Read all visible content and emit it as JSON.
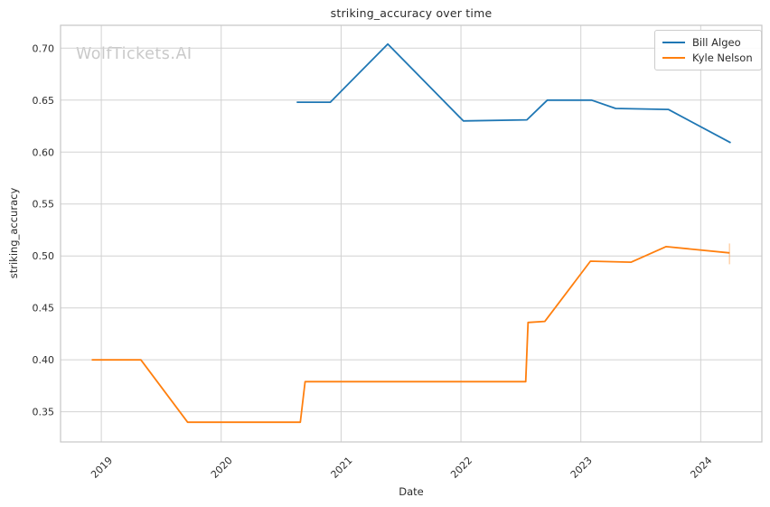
{
  "figure": {
    "watermark": "WolfTickets.AI"
  },
  "chart_data": {
    "type": "line",
    "title": "striking_accuracy over time",
    "xlabel": "Date",
    "ylabel": "striking_accuracy",
    "xlim": [
      2018.66,
      2024.51
    ],
    "ylim": [
      0.321,
      0.722
    ],
    "xticks": [
      2019,
      2020,
      2021,
      2022,
      2023,
      2024
    ],
    "yticks": [
      0.35,
      0.4,
      0.45,
      0.5,
      0.55,
      0.6,
      0.65,
      0.7
    ],
    "grid": true,
    "legend_position": "upper right",
    "series": [
      {
        "name": "Bill Algeo",
        "color": "#1f77b4",
        "points": [
          [
            2020.63,
            0.648
          ],
          [
            2020.91,
            0.648
          ],
          [
            2021.39,
            0.704
          ],
          [
            2022.02,
            0.63
          ],
          [
            2022.55,
            0.631
          ],
          [
            2022.72,
            0.65
          ],
          [
            2023.09,
            0.65
          ],
          [
            2023.29,
            0.642
          ],
          [
            2023.73,
            0.641
          ],
          [
            2024.25,
            0.609
          ]
        ]
      },
      {
        "name": "Kyle Nelson",
        "color": "#ff7f0e",
        "points": [
          [
            2018.92,
            0.4
          ],
          [
            2019.33,
            0.4
          ],
          [
            2019.72,
            0.34
          ],
          [
            2020.66,
            0.34
          ],
          [
            2020.7,
            0.379
          ],
          [
            2022.54,
            0.379
          ],
          [
            2022.56,
            0.436
          ],
          [
            2022.7,
            0.437
          ],
          [
            2023.08,
            0.495
          ],
          [
            2023.42,
            0.494
          ],
          [
            2023.71,
            0.509
          ],
          [
            2024.24,
            0.503
          ]
        ],
        "end_marker": {
          "x": 2024.24,
          "y_low": 0.492,
          "y_high": 0.512
        }
      }
    ],
    "colors": {
      "grid": "#d2d2d2",
      "spine": "#c6c6c6",
      "tick_text": "#2e2e2e",
      "watermark": "#c9c9c9",
      "background": "#ffffff"
    }
  }
}
